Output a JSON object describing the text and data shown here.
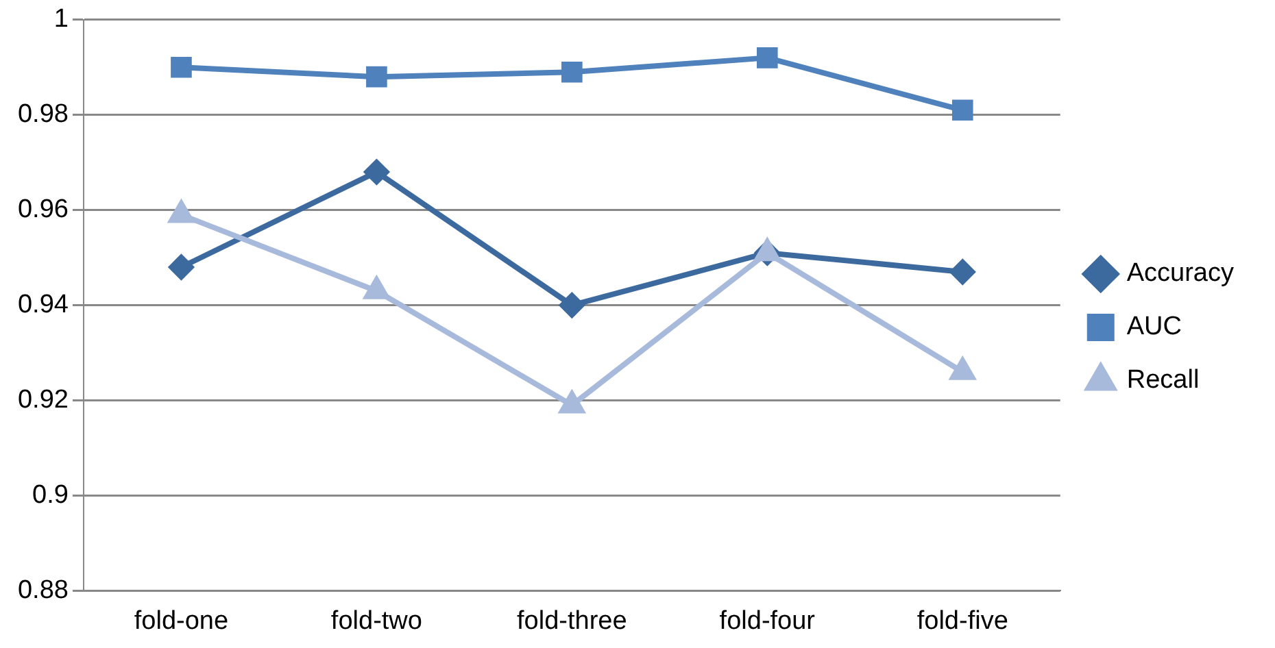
{
  "chart_data": {
    "type": "line",
    "categories": [
      "fold-one",
      "fold-two",
      "fold-three",
      "fold-four",
      "fold-five"
    ],
    "series": [
      {
        "name": "Accuracy",
        "color": "#3c6a9e",
        "marker": "diamond",
        "values": [
          0.948,
          0.968,
          0.94,
          0.951,
          0.947
        ]
      },
      {
        "name": "AUC",
        "color": "#4f81bd",
        "marker": "square",
        "values": [
          0.99,
          0.988,
          0.989,
          0.992,
          0.981
        ]
      },
      {
        "name": "Recall",
        "color": "#a8badb",
        "marker": "triangle",
        "values": [
          0.959,
          0.943,
          0.919,
          0.951,
          0.926
        ]
      }
    ],
    "ylim": [
      0.88,
      1
    ],
    "yticks": [
      0.88,
      0.9,
      0.92,
      0.94,
      0.96,
      0.98,
      1
    ],
    "grid": "y",
    "legend": "right",
    "line_style": "solid"
  }
}
